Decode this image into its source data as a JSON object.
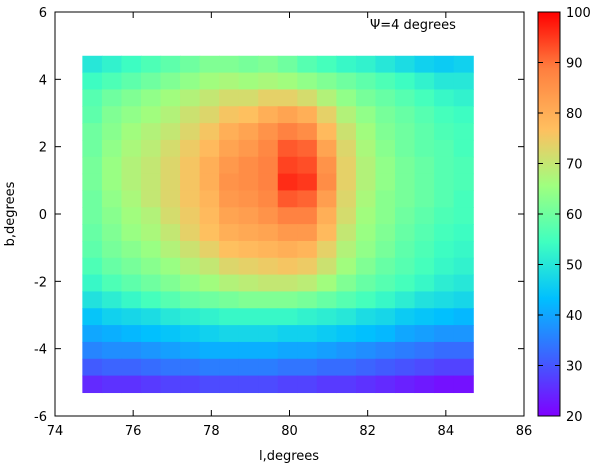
{
  "chart_data": {
    "type": "heatmap",
    "xlabel": "l,degrees",
    "ylabel": "b,degrees",
    "annotation": "Ψ=4 degrees",
    "xlim": [
      74,
      86
    ],
    "ylim": [
      -6,
      6
    ],
    "xticks": [
      74,
      76,
      78,
      80,
      82,
      84,
      86
    ],
    "yticks": [
      -6,
      -4,
      -2,
      0,
      2,
      4,
      6
    ],
    "x_range": [
      74.7,
      84.7
    ],
    "y_range": [
      -5.3,
      4.7
    ],
    "colorbar": {
      "min": 20,
      "max": 100,
      "ticks": [
        20,
        30,
        40,
        50,
        60,
        70,
        80,
        90,
        100
      ],
      "palette": [
        "#7f00ff",
        "#3f5fff",
        "#00bfff",
        "#3fffc0",
        "#9fff7f",
        "#ffbf5f",
        "#ff7f3f",
        "#ff0000"
      ]
    },
    "grid": false,
    "values": [
      [
        50,
        52,
        54,
        56,
        58,
        60,
        62,
        62,
        61,
        62,
        60,
        57,
        55,
        53,
        52,
        50,
        48,
        46,
        45,
        46
      ],
      [
        54,
        56,
        58,
        60,
        62,
        64,
        66,
        67,
        66,
        67,
        66,
        64,
        62,
        60,
        58,
        56,
        54,
        52,
        50,
        50
      ],
      [
        57,
        60,
        62,
        64,
        66,
        68,
        70,
        72,
        72,
        74,
        74,
        72,
        68,
        64,
        61,
        59,
        57,
        55,
        53,
        52
      ],
      [
        58,
        62,
        64,
        66,
        68,
        71,
        73,
        76,
        77,
        80,
        82,
        80,
        74,
        68,
        64,
        61,
        59,
        57,
        55,
        54
      ],
      [
        60,
        63,
        66,
        68,
        70,
        73,
        76,
        80,
        82,
        85,
        88,
        86,
        78,
        71,
        66,
        62,
        60,
        58,
        56,
        55
      ],
      [
        60,
        64,
        67,
        69,
        72,
        75,
        78,
        82,
        84,
        87,
        92,
        91,
        82,
        73,
        67,
        63,
        60,
        58,
        57,
        55
      ],
      [
        61,
        65,
        68,
        70,
        73,
        76,
        80,
        84,
        86,
        88,
        94,
        93,
        85,
        74,
        68,
        64,
        61,
        59,
        57,
        56
      ],
      [
        61,
        65,
        68,
        70,
        73,
        76,
        80,
        85,
        86,
        88,
        96,
        95,
        86,
        74,
        68,
        64,
        61,
        59,
        57,
        56
      ],
      [
        60,
        64,
        67,
        70,
        73,
        76,
        79,
        84,
        85,
        87,
        92,
        91,
        83,
        73,
        67,
        63,
        61,
        59,
        57,
        55
      ],
      [
        60,
        63,
        66,
        68,
        72,
        75,
        78,
        82,
        83,
        85,
        88,
        88,
        80,
        72,
        66,
        63,
        60,
        58,
        56,
        55
      ],
      [
        59,
        62,
        65,
        67,
        70,
        74,
        77,
        80,
        81,
        82,
        84,
        84,
        78,
        70,
        65,
        62,
        59,
        57,
        55,
        54
      ],
      [
        58,
        61,
        63,
        65,
        68,
        71,
        74,
        77,
        78,
        79,
        80,
        79,
        74,
        68,
        64,
        61,
        58,
        56,
        54,
        53
      ],
      [
        56,
        59,
        61,
        63,
        65,
        68,
        70,
        73,
        74,
        75,
        76,
        75,
        71,
        66,
        62,
        59,
        57,
        55,
        53,
        52
      ],
      [
        53,
        56,
        58,
        60,
        62,
        64,
        66,
        68,
        69,
        70,
        70,
        69,
        66,
        62,
        59,
        57,
        55,
        53,
        51,
        50
      ],
      [
        49,
        51,
        53,
        55,
        57,
        59,
        60,
        61,
        62,
        62,
        62,
        61,
        59,
        57,
        55,
        53,
        51,
        49,
        48,
        47
      ],
      [
        44,
        46,
        47,
        48,
        50,
        51,
        52,
        53,
        53,
        53,
        53,
        52,
        51,
        50,
        48,
        47,
        45,
        44,
        43,
        42
      ],
      [
        40,
        41,
        42,
        43,
        44,
        45,
        46,
        47,
        47,
        47,
        46,
        46,
        45,
        44,
        43,
        42,
        40,
        39,
        38,
        38
      ],
      [
        36,
        37,
        37,
        38,
        39,
        40,
        41,
        41,
        41,
        41,
        40,
        40,
        39,
        38,
        37,
        36,
        35,
        34,
        33,
        33
      ],
      [
        31,
        32,
        32,
        33,
        34,
        34,
        35,
        35,
        35,
        35,
        34,
        34,
        33,
        33,
        32,
        31,
        30,
        29,
        28,
        28
      ],
      [
        25,
        26,
        26,
        27,
        28,
        28,
        29,
        29,
        29,
        29,
        28,
        28,
        27,
        27,
        26,
        25,
        24,
        23,
        22,
        22
      ]
    ]
  }
}
